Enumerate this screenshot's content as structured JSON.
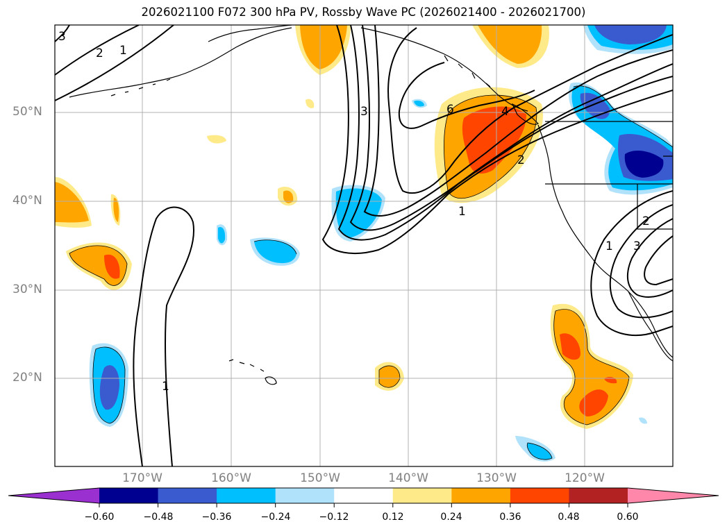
{
  "title": "2026021100 F072 300 hPa PV, Rossby Wave PC (2026021400 - 2026021700)",
  "map": {
    "lat_labels": [
      {
        "value": 50,
        "text": "50°N"
      },
      {
        "value": 40,
        "text": "40°N"
      },
      {
        "value": 30,
        "text": "30°N"
      },
      {
        "value": 20,
        "text": "20°N"
      }
    ],
    "lon_labels": [
      {
        "value": -170,
        "text": "170°W"
      },
      {
        "value": -160,
        "text": "160°W"
      },
      {
        "value": -150,
        "text": "150°W"
      },
      {
        "value": -140,
        "text": "140°W"
      },
      {
        "value": -130,
        "text": "130°W"
      },
      {
        "value": -120,
        "text": "120°W"
      }
    ],
    "contour_labels": [
      "1",
      "2",
      "3",
      "4",
      "6"
    ]
  },
  "colorbar": {
    "ticks": [
      "−0.60",
      "−0.48",
      "−0.36",
      "−0.24",
      "−0.12",
      "0.12",
      "0.24",
      "0.36",
      "0.48",
      "0.60"
    ],
    "colors": [
      "#9b30d0",
      "#000090",
      "#3a5ad0",
      "#00bfff",
      "#b0e2fb",
      "#ffffff",
      "#ffea8a",
      "#ffa500",
      "#ff4500",
      "#b22222",
      "#ff88aa"
    ]
  }
}
